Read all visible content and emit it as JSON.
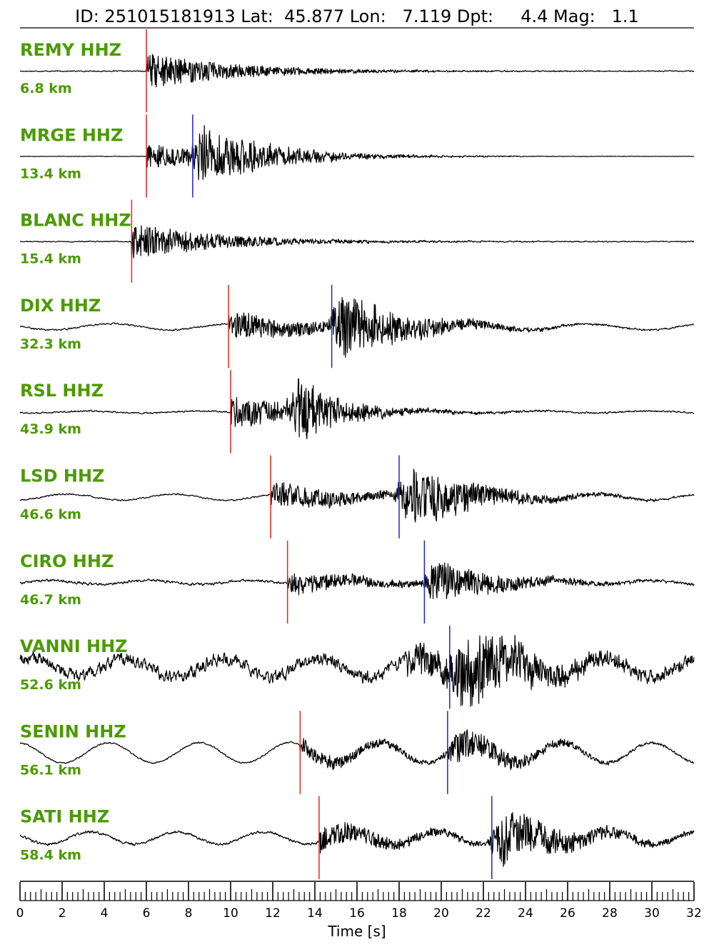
{
  "title": "ID: 251015181913 Lat:  45.877 Lon:   7.119 Dpt:     4.4 Mag:   1.1",
  "colors": {
    "trace": "#000000",
    "label": "#4c9a00",
    "p_pick": "#e8241c",
    "s_pick": "#1f1fd6"
  },
  "chart_data": {
    "type": "line",
    "xlabel": "Time [s]",
    "xlim": [
      0,
      32
    ],
    "x_ticks": [
      "0",
      "2",
      "4",
      "6",
      "8",
      "10",
      "12",
      "14",
      "16",
      "18",
      "20",
      "22",
      "24",
      "26",
      "28",
      "30",
      "32"
    ],
    "grid": false,
    "series": [
      {
        "name": "REMY HHZ",
        "distance": "6.8 km",
        "p": 6.0,
        "s": null,
        "noise": 0.02,
        "amp": 1.0,
        "drift": 0.0,
        "s_env": 0.0
      },
      {
        "name": "MRGE HHZ",
        "distance": "13.4 km",
        "p": 6.0,
        "s": 8.2,
        "noise": 0.01,
        "amp": 0.7,
        "drift": 0.0,
        "s_env": 1.0
      },
      {
        "name": "BLANC HHZ",
        "distance": "15.4 km",
        "p": 5.3,
        "s": null,
        "noise": 0.02,
        "amp": 1.0,
        "drift": 0.0,
        "s_env": 0.0
      },
      {
        "name": "DIX HHZ",
        "distance": "32.3 km",
        "p": 9.9,
        "s": 14.8,
        "noise": 0.03,
        "amp": 0.8,
        "drift": 0.15,
        "s_env": 1.0
      },
      {
        "name": "RSL HHZ",
        "distance": "43.9 km",
        "p": 10.0,
        "s": null,
        "noise": 0.03,
        "amp": 0.9,
        "drift": 0.05,
        "s_env": 0.8
      },
      {
        "name": "LSD HHZ",
        "distance": "46.6 km",
        "p": 11.9,
        "s": 18.0,
        "noise": 0.03,
        "amp": 0.8,
        "drift": 0.15,
        "s_env": 1.0
      },
      {
        "name": "CIRO HHZ",
        "distance": "46.7 km",
        "p": 12.7,
        "s": 19.2,
        "noise": 0.05,
        "amp": 0.6,
        "drift": 0.1,
        "s_env": 0.9
      },
      {
        "name": "VANNI HHZ",
        "distance": "52.6 km",
        "p": null,
        "s": 20.4,
        "noise": 0.25,
        "amp": 0.9,
        "drift": 0.45,
        "s_env": 1.0
      },
      {
        "name": "SENIN HHZ",
        "distance": "56.1 km",
        "p": 13.3,
        "s": 20.3,
        "noise": 0.03,
        "amp": 0.5,
        "drift": 0.5,
        "s_env": 0.8
      },
      {
        "name": "SATI HHZ",
        "distance": "58.4 km",
        "p": 14.2,
        "s": 22.4,
        "noise": 0.05,
        "amp": 0.7,
        "drift": 0.3,
        "s_env": 1.0
      }
    ]
  }
}
